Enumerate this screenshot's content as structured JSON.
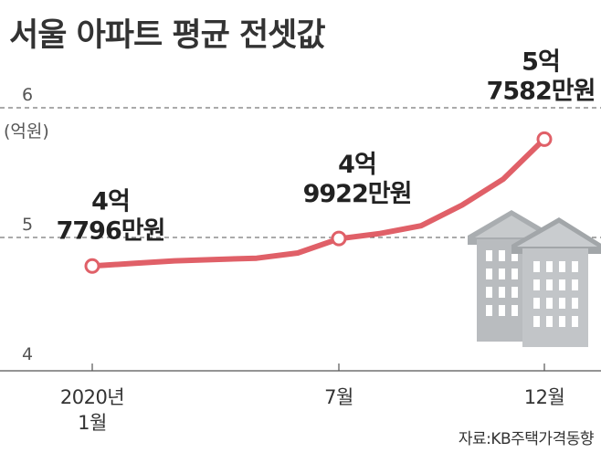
{
  "chart_data": {
    "type": "line",
    "title": "서울 아파트 평균 전셋값",
    "unit": "(억원)",
    "source": "자료:KB주택가격동향",
    "yticks": [
      "6",
      "5",
      "4"
    ],
    "ylim": [
      4,
      6
    ],
    "dashed_gridlines": [
      5,
      6
    ],
    "x_tick_labels": [
      {
        "lines": [
          "2020년",
          "1월"
        ],
        "month_index": 0
      },
      {
        "lines": [
          "7월"
        ],
        "month_index": 6
      },
      {
        "lines": [
          "12월"
        ],
        "month_index": 11
      }
    ],
    "series": [
      {
        "color": "#e06068",
        "values": [
          4.78,
          4.8,
          4.82,
          4.83,
          4.84,
          4.88,
          4.99,
          5.03,
          5.09,
          5.25,
          5.45,
          5.76
        ]
      }
    ],
    "markers": [
      {
        "month_index": 0,
        "value": 4.7796,
        "label": [
          "4억",
          "7796만원"
        ]
      },
      {
        "month_index": 6,
        "value": 4.9922,
        "label": [
          "4억",
          "9922만원"
        ]
      },
      {
        "month_index": 11,
        "value": 5.7582,
        "label": [
          "5억",
          "7582만원"
        ]
      }
    ]
  }
}
